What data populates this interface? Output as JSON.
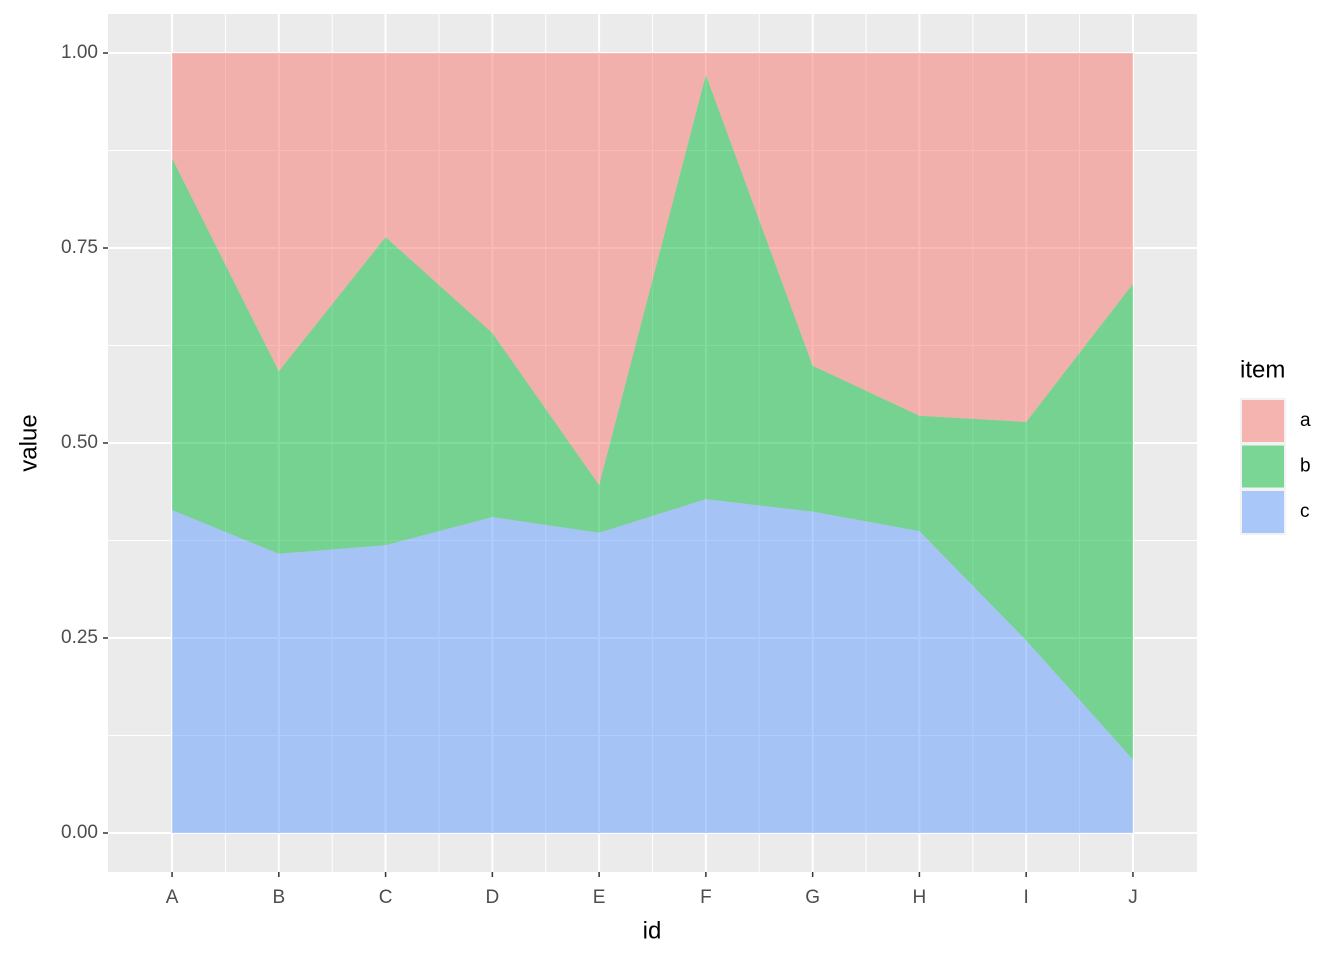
{
  "chart_data": {
    "type": "stacked_area",
    "x_label": "id",
    "y_label": "value",
    "legend_title": "item",
    "categories": [
      "A",
      "B",
      "C",
      "D",
      "E",
      "F",
      "G",
      "H",
      "I",
      "J"
    ],
    "series": [
      {
        "name": "a",
        "color": "#F8766D",
        "values": [
          0.135,
          0.408,
          0.236,
          0.359,
          0.554,
          0.028,
          0.401,
          0.465,
          0.473,
          0.296
        ]
      },
      {
        "name": "b",
        "color": "#00BA38",
        "values": [
          0.451,
          0.234,
          0.395,
          0.236,
          0.061,
          0.544,
          0.187,
          0.148,
          0.28,
          0.61
        ]
      },
      {
        "name": "c",
        "color": "#619CFF",
        "values": [
          0.414,
          0.358,
          0.369,
          0.405,
          0.385,
          0.428,
          0.412,
          0.387,
          0.247,
          0.094
        ]
      }
    ],
    "fill_opacity": 0.5,
    "ylim": [
      -0.05,
      1.05
    ],
    "yticks": [
      {
        "value": 0,
        "label": "0.00"
      },
      {
        "value": 0.25,
        "label": "0.25"
      },
      {
        "value": 0.5,
        "label": "0.50"
      },
      {
        "value": 0.75,
        "label": "0.75"
      },
      {
        "value": 1,
        "label": "1.00"
      }
    ],
    "grid": true
  }
}
